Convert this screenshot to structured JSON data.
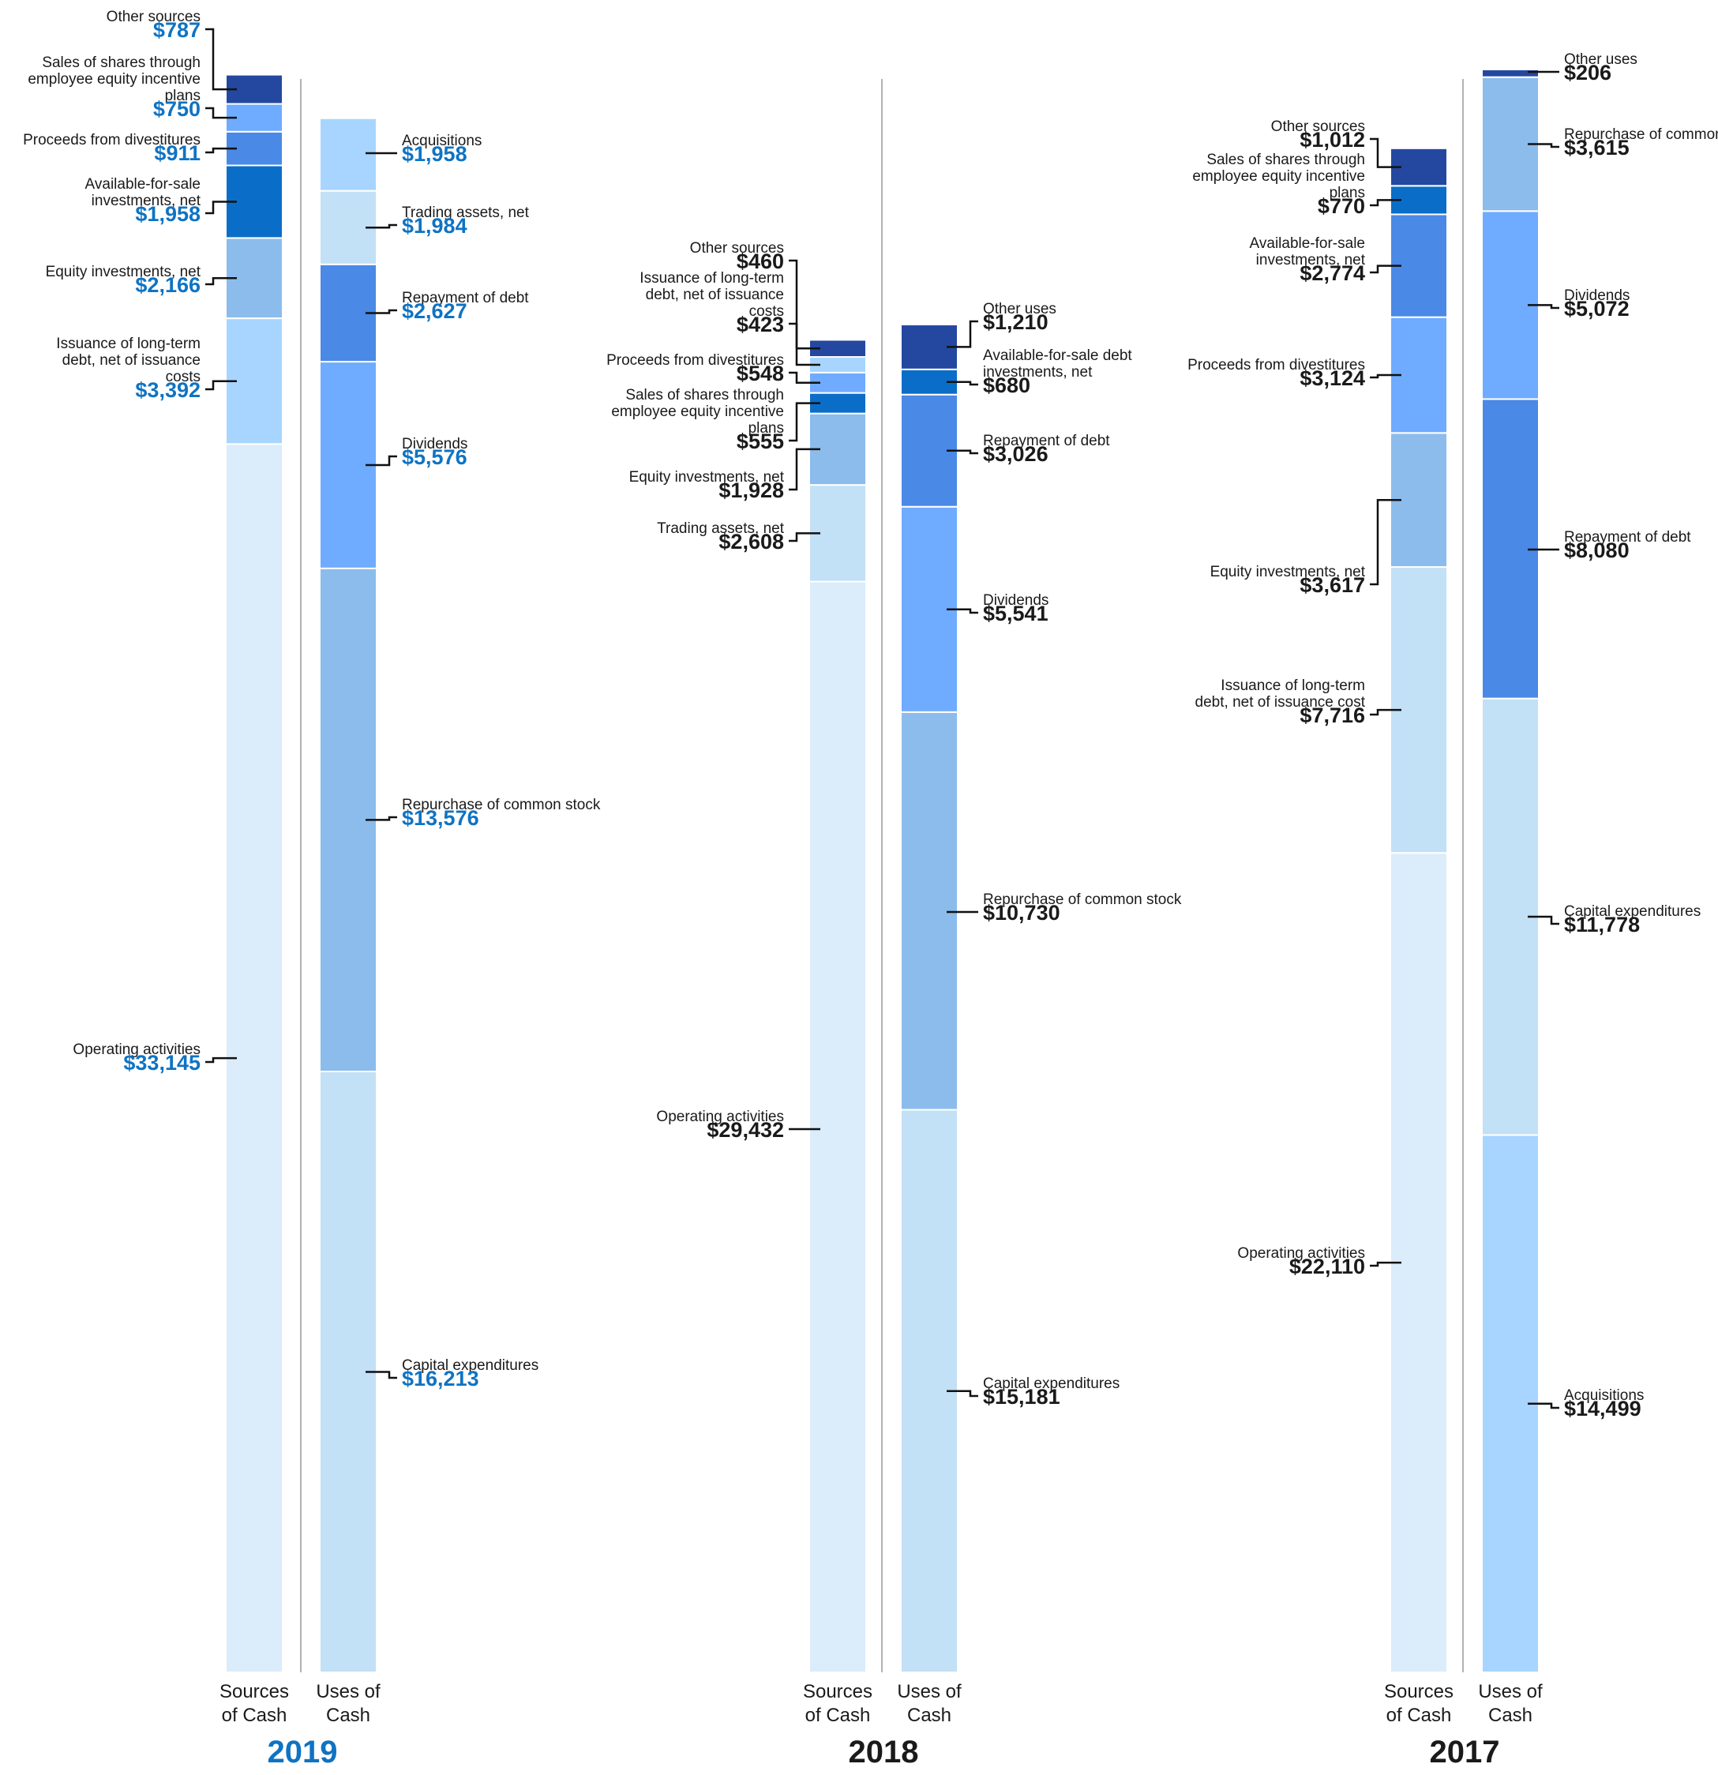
{
  "colors": {
    "highlight": "#0f73c3",
    "dark_text": "#1a1a1a",
    "separator": "#999999",
    "segment_palette": [
      "#dbecfb",
      "#c2e0f6",
      "#8bbcec",
      "#a7d5ff",
      "#6fabff",
      "#4a89e6",
      "#0a6ec8",
      "#2448a0"
    ]
  },
  "chart_data": [
    {
      "type": "bar",
      "year": "2019",
      "highlighted": true,
      "x_labels": [
        "Sources of Cash",
        "Uses of Cash"
      ],
      "sources": [
        {
          "label": "Operating activities",
          "value": 33145,
          "display": "$33,145",
          "color": "#dbecfb"
        },
        {
          "label": "Issuance of long-term debt, net of issuance costs",
          "value": 3392,
          "display": "$3,392",
          "color": "#a7d5ff"
        },
        {
          "label": "Equity investments, net",
          "value": 2166,
          "display": "$2,166",
          "color": "#8bbcec"
        },
        {
          "label": "Available-for-sale investments, net",
          "value": 1958,
          "display": "$1,958",
          "color": "#0a6ec8"
        },
        {
          "label": "Proceeds from divestitures",
          "value": 911,
          "display": "$911",
          "color": "#4a89e6"
        },
        {
          "label": "Sales of shares through employee equity incentive plans",
          "value": 750,
          "display": "$750",
          "color": "#6fabff"
        },
        {
          "label": "Other sources",
          "value": 787,
          "display": "$787",
          "color": "#2448a0"
        }
      ],
      "uses": [
        {
          "label": "Capital expenditures",
          "value": 16213,
          "display": "$16,213",
          "color": "#c2e0f6"
        },
        {
          "label": "Repurchase of common stock",
          "value": 13576,
          "display": "$13,576",
          "color": "#8bbcec"
        },
        {
          "label": "Dividends",
          "value": 5576,
          "display": "$5,576",
          "color": "#6fabff"
        },
        {
          "label": "Repayment of debt",
          "value": 2627,
          "display": "$2,627",
          "color": "#4a89e6"
        },
        {
          "label": "Trading assets, net",
          "value": 1984,
          "display": "$1,984",
          "color": "#c2e0f6"
        },
        {
          "label": "Acquisitions",
          "value": 1958,
          "display": "$1,958",
          "color": "#a7d5ff"
        }
      ]
    },
    {
      "type": "bar",
      "year": "2018",
      "highlighted": false,
      "x_labels": [
        "Sources of Cash",
        "Uses of Cash"
      ],
      "sources": [
        {
          "label": "Operating activities",
          "value": 29432,
          "display": "$29,432",
          "color": "#dbecfb"
        },
        {
          "label": "Trading assets, net",
          "value": 2608,
          "display": "$2,608",
          "color": "#c2e0f6"
        },
        {
          "label": "Equity investments, net",
          "value": 1928,
          "display": "$1,928",
          "color": "#8bbcec"
        },
        {
          "label": "Sales of shares through employee equity incentive plans",
          "value": 555,
          "display": "$555",
          "color": "#0a6ec8"
        },
        {
          "label": "Proceeds from divestitures",
          "value": 548,
          "display": "$548",
          "color": "#6fabff"
        },
        {
          "label": "Issuance of long-term debt, net of issuance costs",
          "value": 423,
          "display": "$423",
          "color": "#a7d5ff"
        },
        {
          "label": "Other sources",
          "value": 460,
          "display": "$460",
          "color": "#2448a0"
        }
      ],
      "uses": [
        {
          "label": "Capital expenditures",
          "value": 15181,
          "display": "$15,181",
          "color": "#c2e0f6"
        },
        {
          "label": "Repurchase of common stock",
          "value": 10730,
          "display": "$10,730",
          "color": "#8bbcec"
        },
        {
          "label": "Dividends",
          "value": 5541,
          "display": "$5,541",
          "color": "#6fabff"
        },
        {
          "label": "Repayment of debt",
          "value": 3026,
          "display": "$3,026",
          "color": "#4a89e6"
        },
        {
          "label": "Available-for-sale debt investments, net",
          "value": 680,
          "display": "$680",
          "color": "#0a6ec8"
        },
        {
          "label": "Other uses",
          "value": 1210,
          "display": "$1,210",
          "color": "#2448a0"
        }
      ]
    },
    {
      "type": "bar",
      "year": "2017",
      "highlighted": false,
      "x_labels": [
        "Sources of Cash",
        "Uses of Cash"
      ],
      "sources": [
        {
          "label": "Operating activities",
          "value": 22110,
          "display": "$22,110",
          "color": "#dbecfb"
        },
        {
          "label": "Issuance of long-term debt, net of issuance cost",
          "value": 7716,
          "display": "$7,716",
          "color": "#c2e0f6"
        },
        {
          "label": "Equity investments, net",
          "value": 3617,
          "display": "$3,617",
          "color": "#8bbcec"
        },
        {
          "label": "Proceeds from divestitures",
          "value": 3124,
          "display": "$3,124",
          "color": "#6fabff"
        },
        {
          "label": "Available-for-sale investments, net",
          "value": 2774,
          "display": "$2,774",
          "color": "#4a89e6"
        },
        {
          "label": "Sales of shares through employee equity incentive plans",
          "value": 770,
          "display": "$770",
          "color": "#0a6ec8"
        },
        {
          "label": "Other sources",
          "value": 1012,
          "display": "$1,012",
          "color": "#2448a0"
        }
      ],
      "uses": [
        {
          "label": "Acquisitions",
          "value": 14499,
          "display": "$14,499",
          "color": "#a7d5ff"
        },
        {
          "label": "Capital expenditures",
          "value": 11778,
          "display": "$11,778",
          "color": "#c2e0f6"
        },
        {
          "label": "Repayment of debt",
          "value": 8080,
          "display": "$8,080",
          "color": "#4a89e6"
        },
        {
          "label": "Dividends",
          "value": 5072,
          "display": "$5,072",
          "color": "#6fabff"
        },
        {
          "label": "Repurchase of common stock",
          "value": 3615,
          "display": "$3,615",
          "color": "#8bbcec"
        },
        {
          "label": "Other uses",
          "value": 206,
          "display": "$206",
          "color": "#2448a0"
        }
      ]
    }
  ]
}
